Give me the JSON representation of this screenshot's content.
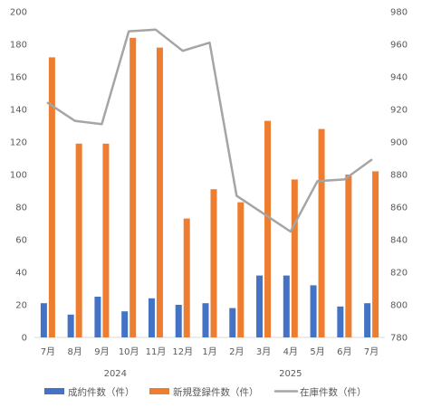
{
  "chart_data": {
    "type": "bar",
    "categories": [
      "7月",
      "8月",
      "9月",
      "10月",
      "11月",
      "12月",
      "1月",
      "2月",
      "3月",
      "4月",
      "5月",
      "6月",
      "7月"
    ],
    "year_groups": [
      {
        "label": "2024",
        "from": 0,
        "to": 5
      },
      {
        "label": "2025",
        "from": 6,
        "to": 12
      }
    ],
    "series": [
      {
        "name": "成約件数（件）",
        "kind": "bar",
        "axis": "left",
        "color": "#4472c4",
        "values": [
          21,
          14,
          25,
          16,
          24,
          20,
          21,
          18,
          38,
          38,
          32,
          19,
          21
        ]
      },
      {
        "name": "新規登録件数（件）",
        "kind": "bar",
        "axis": "left",
        "color": "#ed7d31",
        "values": [
          172,
          119,
          119,
          184,
          178,
          73,
          91,
          83,
          133,
          97,
          128,
          100,
          102
        ]
      },
      {
        "name": "在庫件数（件）",
        "kind": "line",
        "axis": "right",
        "color": "#a5a5a5",
        "values": [
          924,
          913,
          911,
          968,
          969,
          956,
          961,
          867,
          856,
          845,
          876,
          877,
          889
        ]
      }
    ],
    "y_left": {
      "min": 0,
      "max": 200,
      "step": 20,
      "ticks": [
        "0",
        "20",
        "40",
        "60",
        "80",
        "100",
        "120",
        "140",
        "160",
        "180",
        "200"
      ]
    },
    "y_right": {
      "min": 780,
      "max": 980,
      "step": 20,
      "ticks": [
        "780",
        "800",
        "820",
        "840",
        "860",
        "880",
        "900",
        "920",
        "940",
        "960",
        "980"
      ]
    },
    "grid": false,
    "legend_position": "bottom"
  }
}
